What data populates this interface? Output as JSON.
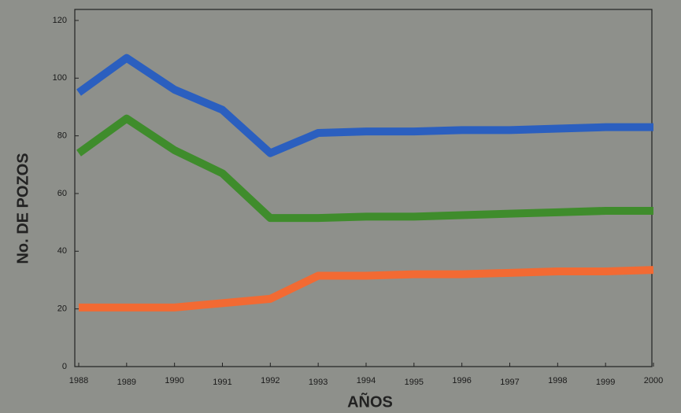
{
  "chart_data": {
    "type": "line",
    "x": [
      1988,
      1989,
      1990,
      1991,
      1992,
      1993,
      1994,
      1995,
      1996,
      1997,
      1998,
      1999,
      2000
    ],
    "xlim": [
      1988,
      2000
    ],
    "xticks": [
      1988,
      1989,
      1990,
      1991,
      1992,
      1993,
      1994,
      1995,
      1996,
      1997,
      1998,
      1999,
      2000
    ],
    "ylim": [
      0,
      120
    ],
    "yticks": [
      0,
      20,
      40,
      60,
      80,
      100,
      120
    ],
    "xlabel": "AÑOS",
    "ylabel": "No. DE POZOS",
    "grid": false,
    "series": [
      {
        "color": "#2b5fbf",
        "values": [
          95,
          107,
          96,
          89,
          74,
          81,
          81.5,
          81.5,
          82,
          82,
          82.5,
          83,
          83
        ]
      },
      {
        "color": "#3f8c2c",
        "values": [
          74,
          86,
          75,
          67,
          51.5,
          51.5,
          52,
          52,
          52.5,
          53,
          53.5,
          54,
          54
        ]
      },
      {
        "color": "#f26a33",
        "values": [
          20.5,
          20.5,
          20.5,
          22,
          23.5,
          31.5,
          31.5,
          32,
          32,
          32.5,
          33,
          33,
          33.5
        ]
      }
    ]
  }
}
